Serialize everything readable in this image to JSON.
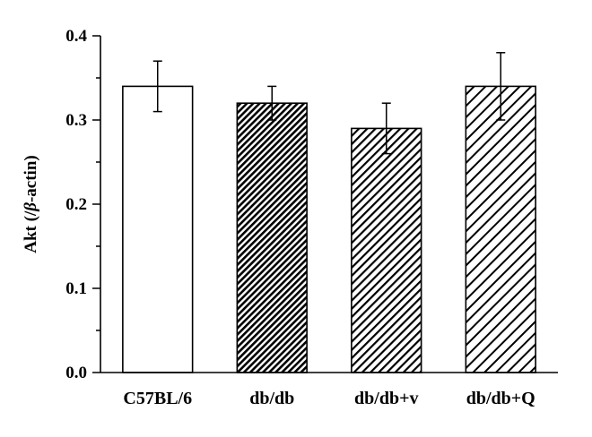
{
  "chart_data": {
    "type": "bar",
    "categories": [
      "C57BL/6",
      "db/db",
      "db/db+v",
      "db/db+Q"
    ],
    "values": [
      0.34,
      0.32,
      0.29,
      0.34
    ],
    "errors": [
      0.03,
      0.02,
      0.03,
      0.04
    ],
    "title": "",
    "xlabel": "",
    "ylabel": "Akt (/β-actin)",
    "ylabel_parts": {
      "prefix": "Akt (/",
      "italic": "β",
      "suffix": "-actin)"
    },
    "ylim": [
      0,
      0.4
    ],
    "yticks": [
      0.0,
      0.1,
      0.2,
      0.3,
      0.4
    ],
    "ytick_labels": [
      "0.0",
      "0.1",
      "0.2",
      "0.3",
      "0.4"
    ],
    "bar_fills": [
      "none",
      "dense-hatch",
      "medium-hatch",
      "sparse-hatch"
    ],
    "grid": false,
    "legend": "none",
    "colors": {
      "bar_stroke": "#000000",
      "hatch": "#000000",
      "background": "#ffffff"
    }
  }
}
